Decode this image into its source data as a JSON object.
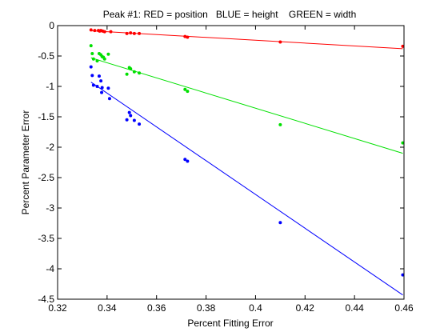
{
  "chart_data": {
    "type": "scatter",
    "title": "Peak #1: RED = position   BLUE = height    GREEN = width",
    "xlabel": "Percent Fitting Error",
    "ylabel": "Percent Parameter Error",
    "xlim": [
      0.32,
      0.46
    ],
    "ylim": [
      -4.5,
      0
    ],
    "x_ticks": [
      0.32,
      0.34,
      0.36,
      0.38,
      0.4,
      0.42,
      0.44,
      0.46
    ],
    "x_tick_labels": [
      "0.32",
      "0.34",
      "0.36",
      "0.38",
      "0.4",
      "0.42",
      "0.44",
      "0.46"
    ],
    "y_ticks": [
      0,
      -0.5,
      -1,
      -1.5,
      -2,
      -2.5,
      -3,
      -3.5,
      -4,
      -4.5
    ],
    "y_tick_labels": [
      "0",
      "-0.5",
      "-1",
      "-1.5",
      "-2",
      "-2.5",
      "-3",
      "-3.5",
      "-4",
      "-4.5"
    ],
    "grid": false,
    "series": [
      {
        "color": "#ff0000",
        "points": [
          [
            0.3335,
            -0.07
          ],
          [
            0.335,
            -0.08
          ],
          [
            0.3365,
            -0.08
          ],
          [
            0.337,
            -0.09
          ],
          [
            0.3375,
            -0.08
          ],
          [
            0.3382,
            -0.09
          ],
          [
            0.339,
            -0.1
          ],
          [
            0.3415,
            -0.1
          ],
          [
            0.348,
            -0.13
          ],
          [
            0.3495,
            -0.12
          ],
          [
            0.351,
            -0.13
          ],
          [
            0.353,
            -0.13
          ],
          [
            0.3715,
            -0.18
          ],
          [
            0.3725,
            -0.19
          ],
          [
            0.41,
            -0.27
          ],
          [
            0.4595,
            -0.34
          ]
        ],
        "fit": [
          [
            0.3335,
            -0.085
          ],
          [
            0.4595,
            -0.38
          ]
        ]
      },
      {
        "color": "#00e000",
        "points": [
          [
            0.3335,
            -0.33
          ],
          [
            0.334,
            -0.46
          ],
          [
            0.3345,
            -0.55
          ],
          [
            0.336,
            -0.58
          ],
          [
            0.3368,
            -0.46
          ],
          [
            0.3375,
            -0.48
          ],
          [
            0.338,
            -0.51
          ],
          [
            0.3385,
            -0.52
          ],
          [
            0.339,
            -0.55
          ],
          [
            0.3405,
            -0.47
          ],
          [
            0.348,
            -0.8
          ],
          [
            0.349,
            -0.69
          ],
          [
            0.3495,
            -0.71
          ],
          [
            0.351,
            -0.76
          ],
          [
            0.353,
            -0.78
          ],
          [
            0.3715,
            -1.05
          ],
          [
            0.3725,
            -1.08
          ],
          [
            0.41,
            -1.63
          ],
          [
            0.4595,
            -1.93
          ]
        ],
        "fit": [
          [
            0.3335,
            -0.53
          ],
          [
            0.4595,
            -2.1
          ]
        ]
      },
      {
        "color": "#0000ff",
        "points": [
          [
            0.3335,
            -0.68
          ],
          [
            0.334,
            -0.82
          ],
          [
            0.3345,
            -0.98
          ],
          [
            0.336,
            -1.0
          ],
          [
            0.3368,
            -0.83
          ],
          [
            0.3375,
            -0.91
          ],
          [
            0.3378,
            -1.1
          ],
          [
            0.338,
            -1.02
          ],
          [
            0.3405,
            -1.03
          ],
          [
            0.341,
            -1.2
          ],
          [
            0.348,
            -1.55
          ],
          [
            0.349,
            -1.43
          ],
          [
            0.3495,
            -1.48
          ],
          [
            0.351,
            -1.56
          ],
          [
            0.353,
            -1.62
          ],
          [
            0.3715,
            -2.2
          ],
          [
            0.3725,
            -2.23
          ],
          [
            0.41,
            -3.24
          ],
          [
            0.4595,
            -4.1
          ]
        ],
        "fit": [
          [
            0.3335,
            -0.93
          ],
          [
            0.4595,
            -4.43
          ]
        ]
      }
    ]
  }
}
